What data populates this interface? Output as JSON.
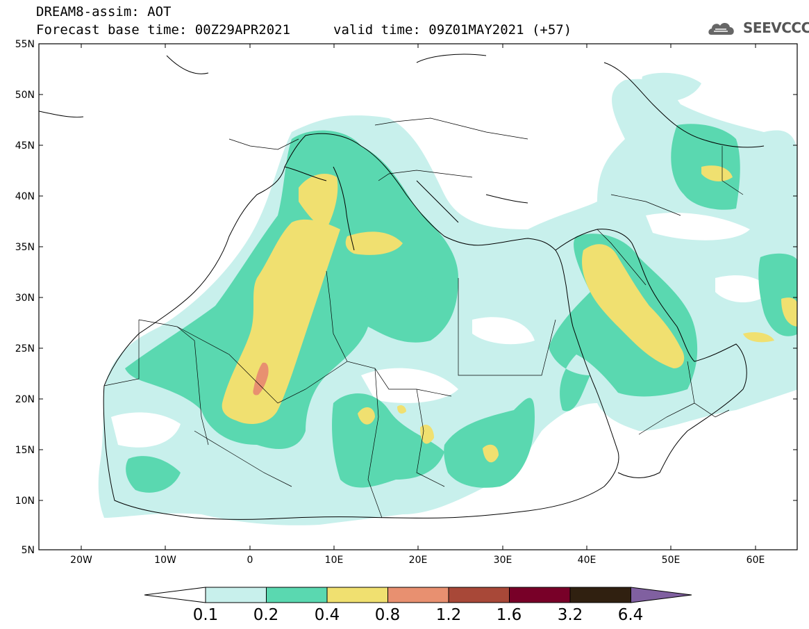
{
  "header": {
    "title_line1": "DREAM8-assim: AOT",
    "title_line2": "Forecast base time: 00Z29APR2021",
    "valid_time": "valid time: 09Z01MAY2021 (+57)",
    "logo_text": "SEEVCCC"
  },
  "axes": {
    "lat_labels": [
      "55N",
      "50N",
      "45N",
      "40N",
      "35N",
      "30N",
      "25N",
      "20N",
      "15N",
      "10N",
      "5N"
    ],
    "lon_labels": [
      "20W",
      "10W",
      "0",
      "10E",
      "20E",
      "30E",
      "40E",
      "50E",
      "60E"
    ],
    "lat_range": [
      5,
      55
    ],
    "lon_range": [
      -25,
      65
    ]
  },
  "colorbar": {
    "levels": [
      "0.1",
      "0.2",
      "0.4",
      "0.8",
      "1.2",
      "1.6",
      "3.2",
      "6.4"
    ],
    "colors": [
      "#c8f0ec",
      "#5ad8b0",
      "#f0e070",
      "#e89070",
      "#a84838",
      "#780028",
      "#302010",
      "#8060a0"
    ]
  }
}
